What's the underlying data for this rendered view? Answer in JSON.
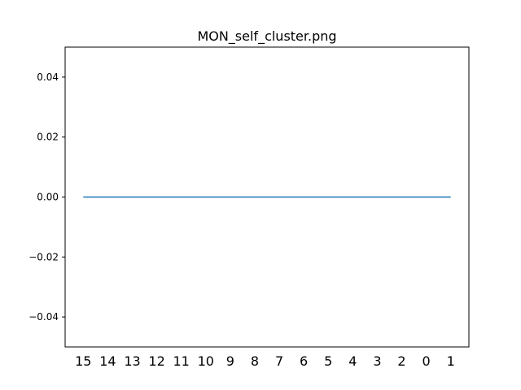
{
  "chart_data": {
    "type": "line",
    "title": "MON_self_cluster.png",
    "xlabel": "",
    "ylabel": "",
    "categories": [
      "15",
      "14",
      "13",
      "12",
      "11",
      "10",
      "9",
      "8",
      "7",
      "6",
      "5",
      "4",
      "3",
      "2",
      "0",
      "1"
    ],
    "series": [
      {
        "values": [
          0,
          0,
          0,
          0,
          0,
          0,
          0,
          0,
          0,
          0,
          0,
          0,
          0,
          0,
          0,
          0
        ]
      }
    ],
    "ylim": [
      -0.05,
      0.05
    ],
    "yticks": [
      -0.04,
      -0.02,
      0.0,
      0.02,
      0.04
    ],
    "ytick_labels": [
      "−0.04",
      "−0.02",
      "0.00",
      "0.02",
      "0.04"
    ],
    "grid": false,
    "colors": {
      "line": "#1f77b4",
      "axes": "#000000",
      "background": "#ffffff"
    }
  }
}
